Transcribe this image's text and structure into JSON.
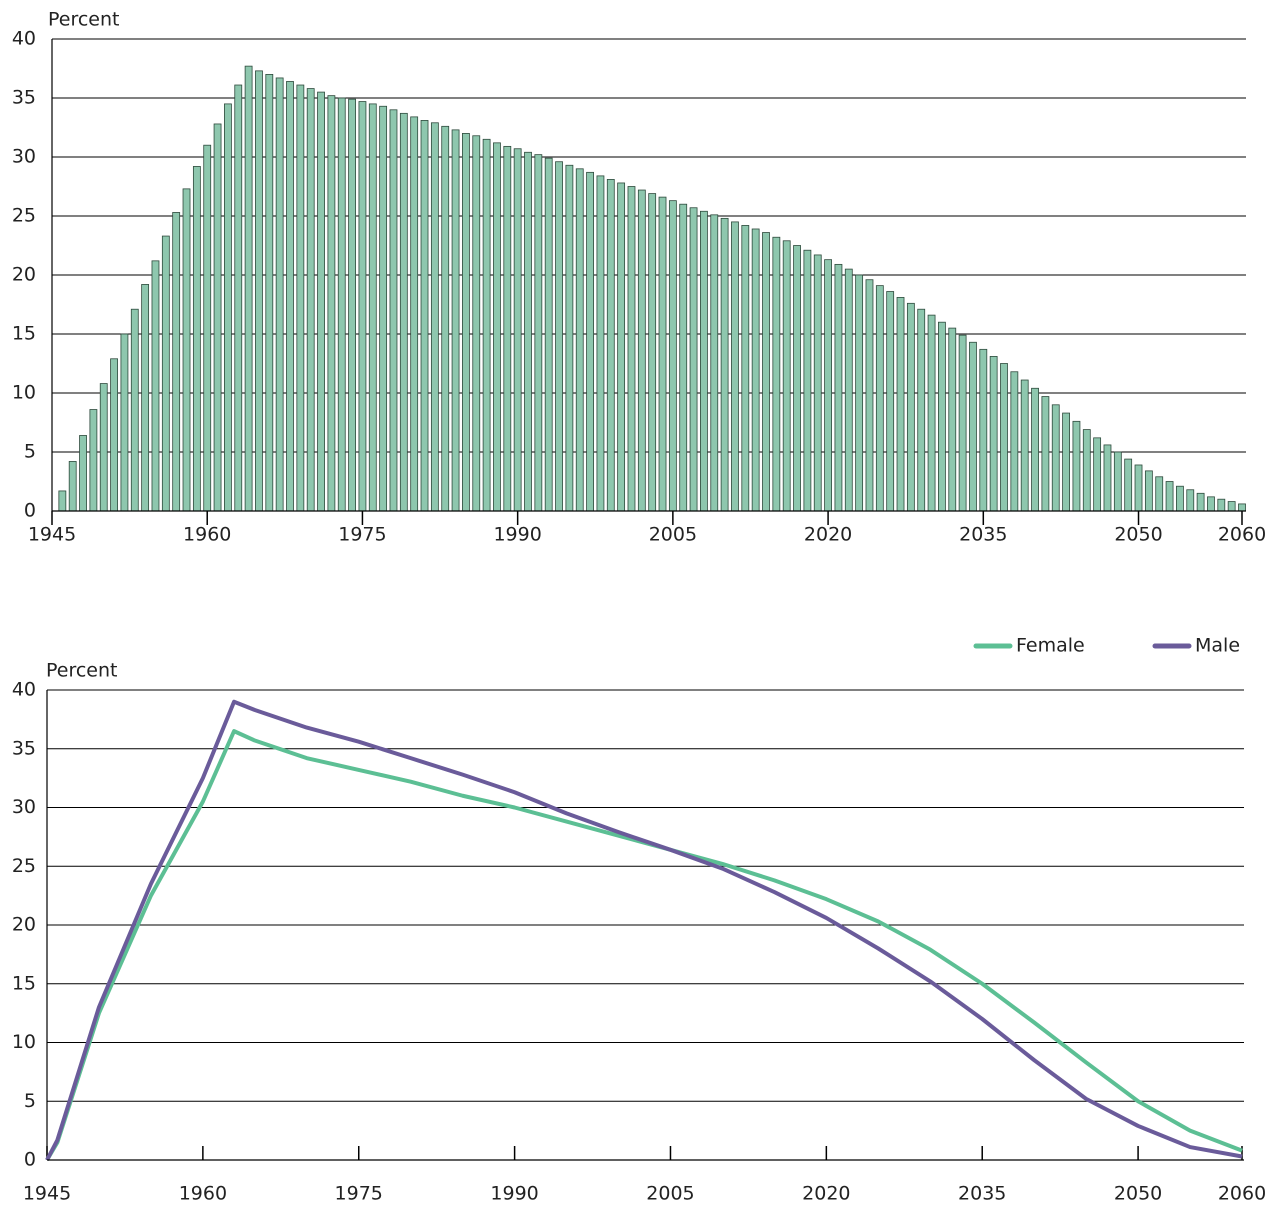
{
  "chart_data": [
    {
      "type": "bar",
      "y_label": "Percent",
      "x": [
        1946,
        1947,
        1948,
        1949,
        1950,
        1951,
        1952,
        1953,
        1954,
        1955,
        1956,
        1957,
        1958,
        1959,
        1960,
        1961,
        1962,
        1963,
        1964,
        1965,
        1966,
        1967,
        1968,
        1969,
        1970,
        1971,
        1972,
        1973,
        1974,
        1975,
        1976,
        1977,
        1978,
        1979,
        1980,
        1981,
        1982,
        1983,
        1984,
        1985,
        1986,
        1987,
        1988,
        1989,
        1990,
        1991,
        1992,
        1993,
        1994,
        1995,
        1996,
        1997,
        1998,
        1999,
        2000,
        2001,
        2002,
        2003,
        2004,
        2005,
        2006,
        2007,
        2008,
        2009,
        2010,
        2011,
        2012,
        2013,
        2014,
        2015,
        2016,
        2017,
        2018,
        2019,
        2020,
        2021,
        2022,
        2023,
        2024,
        2025,
        2026,
        2027,
        2028,
        2029,
        2030,
        2031,
        2032,
        2033,
        2034,
        2035,
        2036,
        2037,
        2038,
        2039,
        2040,
        2041,
        2042,
        2043,
        2044,
        2045,
        2046,
        2047,
        2048,
        2049,
        2050,
        2051,
        2052,
        2053,
        2054,
        2055,
        2056,
        2057,
        2058,
        2059,
        2060
      ],
      "values": [
        1.7,
        4.2,
        6.4,
        8.6,
        10.8,
        12.9,
        15.0,
        17.1,
        19.2,
        21.2,
        23.3,
        25.3,
        27.3,
        29.2,
        31.0,
        32.8,
        34.5,
        36.1,
        37.7,
        37.3,
        37.0,
        36.7,
        36.4,
        36.1,
        35.8,
        35.5,
        35.2,
        35.0,
        34.9,
        34.7,
        34.5,
        34.3,
        34.0,
        33.7,
        33.4,
        33.1,
        32.9,
        32.6,
        32.3,
        32.0,
        31.8,
        31.5,
        31.2,
        30.9,
        30.7,
        30.4,
        30.2,
        29.9,
        29.6,
        29.3,
        29.0,
        28.7,
        28.4,
        28.1,
        27.8,
        27.5,
        27.2,
        26.9,
        26.6,
        26.3,
        26.0,
        25.7,
        25.4,
        25.1,
        24.8,
        24.5,
        24.2,
        23.9,
        23.6,
        23.2,
        22.9,
        22.5,
        22.1,
        21.7,
        21.3,
        20.9,
        20.5,
        20.0,
        19.6,
        19.1,
        18.6,
        18.1,
        17.6,
        17.1,
        16.6,
        16.0,
        15.5,
        14.9,
        14.3,
        13.7,
        13.1,
        12.5,
        11.8,
        11.1,
        10.4,
        9.7,
        9.0,
        8.3,
        7.6,
        6.9,
        6.2,
        5.6,
        5.0,
        4.4,
        3.9,
        3.4,
        2.9,
        2.5,
        2.1,
        1.8,
        1.5,
        1.2,
        1.0,
        0.8,
        0.6
      ],
      "color": "#8ec7ae",
      "xlim": [
        1945,
        2060
      ],
      "xticks": [
        1945,
        1960,
        1975,
        1990,
        2005,
        2020,
        2035,
        2050,
        2060
      ],
      "ylim": [
        0,
        40
      ],
      "yticks": [
        0,
        5,
        10,
        15,
        20,
        25,
        30,
        35,
        40
      ],
      "grid": true
    },
    {
      "type": "line",
      "y_label": "Percent",
      "x": [
        1945,
        1946,
        1950,
        1955,
        1960,
        1963,
        1965,
        1970,
        1975,
        1980,
        1985,
        1990,
        1995,
        2000,
        2005,
        2010,
        2015,
        2020,
        2025,
        2030,
        2035,
        2040,
        2045,
        2050,
        2055,
        2060
      ],
      "series": [
        {
          "name": "Female",
          "color": "#5cbf94",
          "values": [
            0,
            1.5,
            12.5,
            22.5,
            30.5,
            36.5,
            35.7,
            34.2,
            33.2,
            32.2,
            31.0,
            30.0,
            28.8,
            27.6,
            26.4,
            25.2,
            23.8,
            22.2,
            20.3,
            17.9,
            15.0,
            11.7,
            8.3,
            5.0,
            2.5,
            0.8
          ]
        },
        {
          "name": "Male",
          "color": "#6a5b9a",
          "values": [
            0,
            1.7,
            13.0,
            23.5,
            32.5,
            39.0,
            38.3,
            36.8,
            35.6,
            34.2,
            32.8,
            31.3,
            29.5,
            27.9,
            26.4,
            24.8,
            22.8,
            20.6,
            18.0,
            15.2,
            12.0,
            8.5,
            5.2,
            2.9,
            1.1,
            0.3
          ]
        }
      ],
      "xlim": [
        1945,
        2060
      ],
      "xticks": [
        1945,
        1960,
        1975,
        1990,
        2005,
        2020,
        2035,
        2050,
        2060
      ],
      "ylim": [
        0,
        40
      ],
      "yticks": [
        0,
        5,
        10,
        15,
        20,
        25,
        30,
        35,
        40
      ],
      "grid": true,
      "legend": "top-right"
    }
  ]
}
